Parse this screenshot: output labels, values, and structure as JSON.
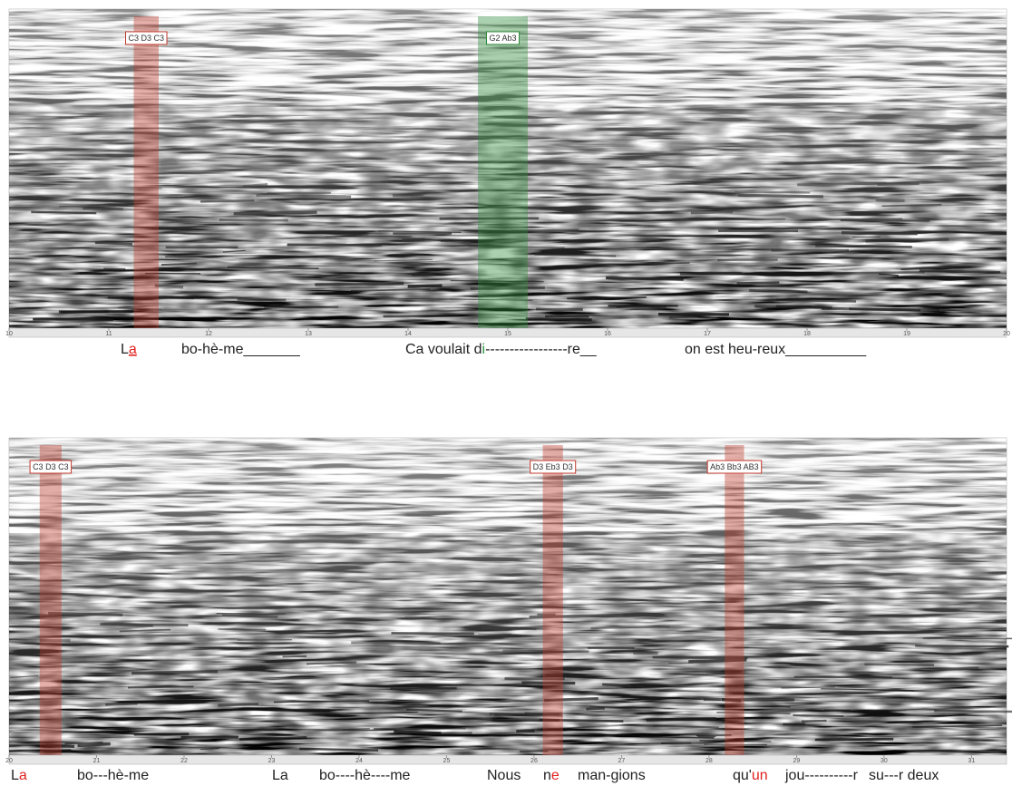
{
  "panels": [
    {
      "xlim": [
        10,
        20
      ],
      "xticks": [
        10,
        11,
        12,
        13,
        14,
        15,
        16,
        17,
        18,
        19,
        20
      ],
      "highlights": [
        {
          "label": "C3 D3 C3",
          "start": 11.25,
          "end": 11.5,
          "color": "#c0392b"
        },
        {
          "label": "G2 Ab3",
          "start": 14.7,
          "end": 15.2,
          "color": "#2e8b3a"
        }
      ],
      "lyrics": [
        {
          "parts": [
            {
              "text": "L"
            },
            {
              "text": "a",
              "color": "#e02020",
              "underline": true
            }
          ]
        },
        {
          "parts": [
            {
              "text": "bo-hè-me_______"
            }
          ]
        },
        {
          "parts": [
            {
              "text": "Ca voulait d"
            },
            {
              "text": "i",
              "color": "#2a9a40"
            },
            {
              "text": "-----------------re__"
            }
          ]
        },
        {
          "parts": [
            {
              "text": "on  est  heu-reux__________"
            }
          ]
        }
      ]
    },
    {
      "xlim": [
        20,
        31.4
      ],
      "xticks": [
        20,
        21,
        22,
        23,
        24,
        25,
        26,
        27,
        28,
        29,
        30,
        31
      ],
      "highlights": [
        {
          "label": "C3 D3 C3",
          "start": 20.35,
          "end": 20.6,
          "color": "#c0392b"
        },
        {
          "label": "D3 Eb3 D3",
          "start": 26.1,
          "end": 26.33,
          "color": "#c0392b"
        },
        {
          "label": "Ab3 Bb3 AB3",
          "start": 28.18,
          "end": 28.4,
          "color": "#c0392b"
        }
      ],
      "lyrics": [
        {
          "parts": [
            {
              "text": "L"
            },
            {
              "text": "a",
              "color": "#e02020"
            }
          ]
        },
        {
          "parts": [
            {
              "text": "bo---hè-me"
            }
          ]
        },
        {
          "parts": [
            {
              "text": "La"
            }
          ]
        },
        {
          "parts": [
            {
              "text": "bo----hè----me"
            }
          ]
        },
        {
          "parts": [
            {
              "text": "Nous"
            }
          ]
        },
        {
          "parts": [
            {
              "text": "n"
            },
            {
              "text": "e",
              "color": "#e02020"
            }
          ]
        },
        {
          "parts": [
            {
              "text": "man-gions"
            }
          ]
        },
        {
          "parts": [
            {
              "text": "qu'"
            },
            {
              "text": "un",
              "color": "#e02020"
            }
          ]
        },
        {
          "parts": [
            {
              "text": "jou----------r"
            }
          ]
        },
        {
          "parts": [
            {
              "text": "su---r deux"
            }
          ]
        }
      ]
    }
  ]
}
